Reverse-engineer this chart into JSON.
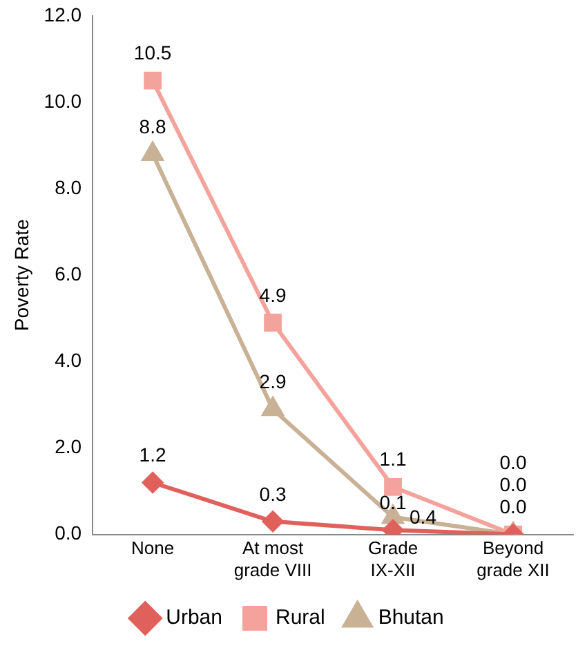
{
  "chart_data": {
    "type": "line",
    "ylabel": "Poverty Rate",
    "categories": [
      "None",
      "At most grade VIII",
      "Grade IX-XII",
      "Beyond grade XII"
    ],
    "series": [
      {
        "name": "Urban",
        "color": "#e0605c",
        "marker": "diamond",
        "values": [
          1.2,
          0.3,
          0.1,
          0.0
        ],
        "value_labels": [
          "1.2",
          "0.3",
          "0.1",
          "0.0"
        ]
      },
      {
        "name": "Rural",
        "color": "#f4a39c",
        "marker": "square",
        "values": [
          10.5,
          4.9,
          1.1,
          0.0
        ],
        "value_labels": [
          "10.5",
          "4.9",
          "1.1",
          "0.0"
        ]
      },
      {
        "name": "Bhutan",
        "color": "#c9b196",
        "marker": "triangle",
        "values": [
          8.8,
          2.9,
          0.4,
          0.0
        ],
        "value_labels": [
          "8.8",
          "2.9",
          "0.4",
          "0.0"
        ]
      }
    ],
    "ylim": [
      0,
      12
    ],
    "yticks": [
      {
        "value": 0,
        "label": "0.0"
      },
      {
        "value": 2,
        "label": "2.0"
      },
      {
        "value": 4,
        "label": "4.0"
      },
      {
        "value": 6,
        "label": "6.0"
      },
      {
        "value": 8,
        "label": "8.0"
      },
      {
        "value": 10,
        "label": "10.0"
      },
      {
        "value": 12,
        "label": "12.0"
      }
    ],
    "grid": false,
    "legend": "bottom"
  }
}
